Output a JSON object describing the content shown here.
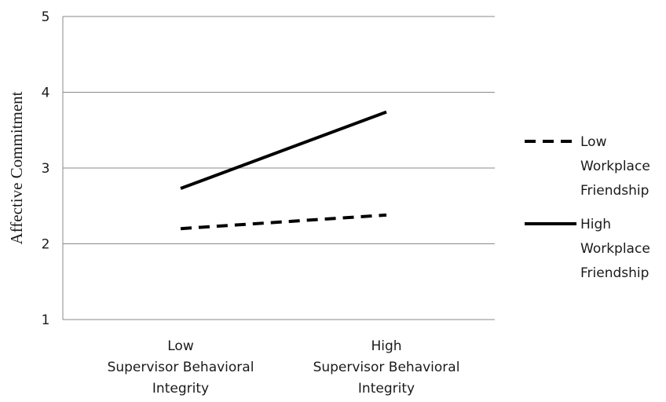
{
  "chart_data": {
    "type": "line",
    "categories": [
      [
        "Low",
        "Supervisor Behavioral",
        "Integrity"
      ],
      [
        "High",
        "Supervisor Behavioral",
        "Integrity"
      ]
    ],
    "ylabel": "Affective Commitment",
    "ylim": [
      1,
      5
    ],
    "yticks": [
      "1",
      "2",
      "3",
      "4",
      "5"
    ],
    "grid": true,
    "legend_position": "right",
    "series": [
      {
        "name_lines": [
          "Low",
          "Workplace",
          "Friendship"
        ],
        "values": [
          2.2,
          2.38
        ],
        "style": "dashed",
        "color": "#000000"
      },
      {
        "name_lines": [
          "High",
          "Workplace",
          "Friendship"
        ],
        "values": [
          2.73,
          3.74
        ],
        "style": "solid",
        "color": "#000000"
      }
    ]
  }
}
